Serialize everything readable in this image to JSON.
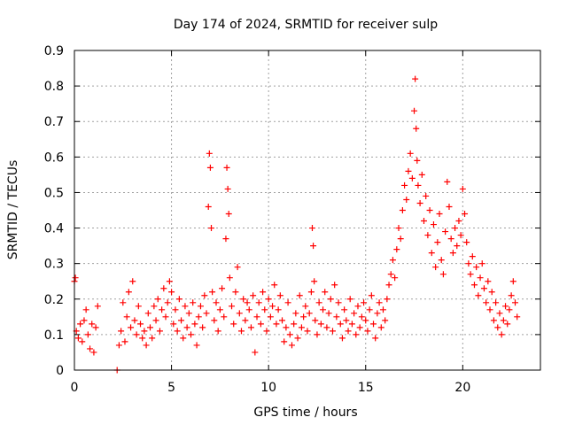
{
  "chart_data": {
    "type": "scatter",
    "title": "Day 174 of 2024, SRMTID for receiver sulp",
    "xlabel": "GPS time / hours",
    "ylabel": "SRMTID / TECUs",
    "xlim": [
      0,
      24
    ],
    "ylim": [
      0,
      0.9
    ],
    "xticks": [
      0,
      5,
      10,
      15,
      20
    ],
    "yticks": [
      0,
      0.1,
      0.2,
      0.3,
      0.4,
      0.5,
      0.6,
      0.7,
      0.8,
      0.9
    ],
    "ytick_labels": [
      "0",
      "0.1",
      "0.2",
      "0.3",
      "0.4",
      "0.5",
      "0.6",
      "0.7",
      "0.8",
      "0.9"
    ],
    "grid": true,
    "marker": "+",
    "marker_color": "#ff0000",
    "series": [
      {
        "name": "SRMTID",
        "color": "#ff0000",
        "x": [
          0.0,
          0.05,
          0.1,
          0.2,
          0.3,
          0.4,
          0.5,
          0.6,
          0.7,
          0.8,
          0.9,
          1.0,
          1.1,
          1.2,
          2.2,
          2.3,
          2.4,
          2.5,
          2.6,
          2.7,
          2.8,
          2.9,
          3.0,
          3.1,
          3.2,
          3.3,
          3.4,
          3.5,
          3.6,
          3.7,
          3.8,
          3.9,
          4.0,
          4.1,
          4.2,
          4.3,
          4.4,
          4.5,
          4.6,
          4.7,
          4.8,
          4.9,
          5.0,
          5.1,
          5.2,
          5.3,
          5.4,
          5.5,
          5.6,
          5.7,
          5.8,
          5.9,
          6.0,
          6.1,
          6.2,
          6.3,
          6.4,
          6.5,
          6.6,
          6.7,
          6.8,
          6.9,
          6.95,
          7.0,
          7.05,
          7.1,
          7.2,
          7.3,
          7.4,
          7.5,
          7.6,
          7.7,
          7.8,
          7.85,
          7.9,
          7.95,
          8.0,
          8.1,
          8.2,
          8.3,
          8.4,
          8.5,
          8.6,
          8.7,
          8.8,
          8.9,
          9.0,
          9.1,
          9.2,
          9.3,
          9.4,
          9.5,
          9.6,
          9.7,
          9.8,
          9.9,
          10.0,
          10.1,
          10.2,
          10.3,
          10.4,
          10.5,
          10.6,
          10.7,
          10.8,
          10.9,
          11.0,
          11.1,
          11.2,
          11.3,
          11.4,
          11.5,
          11.6,
          11.7,
          11.8,
          11.9,
          12.0,
          12.1,
          12.2,
          12.25,
          12.3,
          12.35,
          12.4,
          12.5,
          12.6,
          12.7,
          12.8,
          12.9,
          13.0,
          13.1,
          13.2,
          13.3,
          13.4,
          13.5,
          13.6,
          13.7,
          13.8,
          13.9,
          14.0,
          14.1,
          14.2,
          14.3,
          14.4,
          14.5,
          14.6,
          14.7,
          14.8,
          14.9,
          15.0,
          15.1,
          15.2,
          15.3,
          15.4,
          15.5,
          15.6,
          15.7,
          15.8,
          15.9,
          16.0,
          16.1,
          16.2,
          16.3,
          16.4,
          16.5,
          16.6,
          16.7,
          16.8,
          16.9,
          17.0,
          17.1,
          17.2,
          17.3,
          17.4,
          17.5,
          17.55,
          17.6,
          17.65,
          17.7,
          17.8,
          17.9,
          18.0,
          18.1,
          18.2,
          18.3,
          18.4,
          18.5,
          18.6,
          18.7,
          18.8,
          18.9,
          19.0,
          19.1,
          19.2,
          19.3,
          19.4,
          19.5,
          19.6,
          19.7,
          19.8,
          19.9,
          20.0,
          20.1,
          20.2,
          20.3,
          20.4,
          20.5,
          20.6,
          20.7,
          20.8,
          20.9,
          21.0,
          21.1,
          21.2,
          21.3,
          21.4,
          21.5,
          21.6,
          21.7,
          21.8,
          21.9,
          22.0,
          22.1,
          22.2,
          22.3,
          22.4,
          22.5,
          22.6,
          22.7,
          22.8
        ],
        "y": [
          0.25,
          0.26,
          0.11,
          0.09,
          0.13,
          0.08,
          0.14,
          0.17,
          0.1,
          0.06,
          0.13,
          0.05,
          0.12,
          0.18,
          0.0,
          0.07,
          0.11,
          0.19,
          0.08,
          0.15,
          0.22,
          0.12,
          0.25,
          0.14,
          0.1,
          0.18,
          0.13,
          0.09,
          0.11,
          0.07,
          0.16,
          0.12,
          0.09,
          0.18,
          0.14,
          0.2,
          0.11,
          0.17,
          0.23,
          0.15,
          0.19,
          0.25,
          0.22,
          0.13,
          0.17,
          0.11,
          0.2,
          0.14,
          0.09,
          0.18,
          0.12,
          0.16,
          0.1,
          0.19,
          0.13,
          0.07,
          0.15,
          0.18,
          0.12,
          0.21,
          0.16,
          0.46,
          0.61,
          0.57,
          0.4,
          0.22,
          0.14,
          0.19,
          0.11,
          0.17,
          0.23,
          0.15,
          0.37,
          0.57,
          0.51,
          0.44,
          0.26,
          0.18,
          0.13,
          0.22,
          0.29,
          0.16,
          0.11,
          0.2,
          0.14,
          0.19,
          0.17,
          0.12,
          0.21,
          0.05,
          0.15,
          0.19,
          0.13,
          0.22,
          0.17,
          0.11,
          0.2,
          0.15,
          0.18,
          0.24,
          0.13,
          0.17,
          0.21,
          0.14,
          0.08,
          0.12,
          0.19,
          0.1,
          0.07,
          0.13,
          0.16,
          0.09,
          0.21,
          0.12,
          0.15,
          0.18,
          0.11,
          0.16,
          0.22,
          0.4,
          0.35,
          0.25,
          0.14,
          0.1,
          0.19,
          0.13,
          0.17,
          0.22,
          0.12,
          0.16,
          0.2,
          0.11,
          0.24,
          0.15,
          0.19,
          0.13,
          0.09,
          0.17,
          0.14,
          0.11,
          0.2,
          0.13,
          0.16,
          0.1,
          0.18,
          0.12,
          0.15,
          0.19,
          0.14,
          0.11,
          0.17,
          0.21,
          0.13,
          0.09,
          0.16,
          0.19,
          0.12,
          0.17,
          0.14,
          0.2,
          0.24,
          0.27,
          0.31,
          0.26,
          0.34,
          0.4,
          0.37,
          0.45,
          0.52,
          0.48,
          0.56,
          0.61,
          0.54,
          0.73,
          0.82,
          0.68,
          0.59,
          0.52,
          0.47,
          0.55,
          0.42,
          0.49,
          0.38,
          0.45,
          0.33,
          0.41,
          0.29,
          0.36,
          0.44,
          0.31,
          0.27,
          0.39,
          0.53,
          0.46,
          0.37,
          0.33,
          0.4,
          0.35,
          0.42,
          0.38,
          0.51,
          0.44,
          0.36,
          0.3,
          0.27,
          0.32,
          0.24,
          0.29,
          0.21,
          0.26,
          0.3,
          0.23,
          0.19,
          0.25,
          0.17,
          0.22,
          0.14,
          0.19,
          0.12,
          0.16,
          0.1,
          0.14,
          0.18,
          0.13,
          0.17,
          0.21,
          0.25,
          0.19,
          0.15
        ]
      }
    ]
  }
}
